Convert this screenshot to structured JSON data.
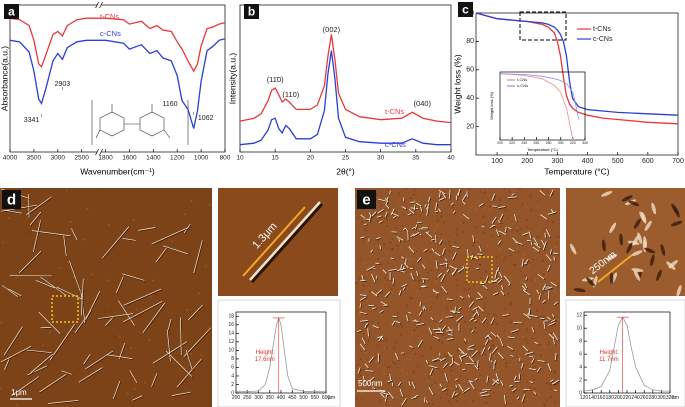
{
  "chart_data": [
    {
      "type": "line",
      "panel": "a",
      "xlabel": "Wavenumber(cm⁻¹)",
      "ylabel": "Absorbance(a.u.)",
      "x": [
        4000,
        3800,
        3600,
        3500,
        3400,
        3341,
        3250,
        3100,
        3000,
        2903,
        2800,
        2600,
        2400,
        2200,
        1800,
        1650,
        1600,
        1500,
        1430,
        1370,
        1320,
        1250,
        1200,
        1160,
        1110,
        1062,
        1030,
        1000,
        950,
        900,
        850,
        800
      ],
      "xlim": [
        4000,
        800
      ],
      "xticks": [
        4000,
        3500,
        3000,
        2500,
        1800,
        1600,
        1400,
        1200,
        1000,
        800
      ],
      "ylim": [
        0,
        10
      ],
      "series": [
        {
          "name": "t-CNs",
          "color": "#e8383d",
          "values": [
            9.1,
            9.0,
            8.6,
            7.6,
            6.0,
            5.8,
            6.6,
            8.0,
            8.2,
            7.9,
            8.6,
            9.0,
            9.1,
            9.1,
            9.1,
            9.0,
            8.7,
            8.9,
            8.4,
            8.6,
            8.3,
            8.2,
            7.5,
            7.0,
            6.2,
            5.5,
            6.0,
            7.2,
            8.4,
            8.5,
            8.7,
            8.8
          ]
        },
        {
          "name": "c-CNs",
          "color": "#2a3fd6",
          "values": [
            7.6,
            7.5,
            6.8,
            5.5,
            3.6,
            3.3,
            4.3,
            6.2,
            6.7,
            6.3,
            7.1,
            7.5,
            7.6,
            7.6,
            7.6,
            7.4,
            7.0,
            7.3,
            6.7,
            6.9,
            6.4,
            6.2,
            5.2,
            3.5,
            2.9,
            1.6,
            2.8,
            4.8,
            6.9,
            7.2,
            7.6,
            7.7
          ]
        }
      ],
      "annotations": [
        3341,
        2903,
        1160,
        1062
      ]
    },
    {
      "type": "line",
      "panel": "b",
      "xlabel": "2θ(°)",
      "ylabel": "Intensity(a.u.)",
      "x": [
        10,
        12,
        13,
        14,
        14.5,
        15,
        15.5,
        16,
        16.5,
        17,
        18,
        20,
        21,
        22,
        22.5,
        23,
        23.5,
        24,
        25,
        27,
        30,
        33,
        34.5,
        36,
        38,
        40
      ],
      "xlim": [
        10,
        40
      ],
      "xticks": [
        10,
        15,
        20,
        25,
        30,
        35,
        40
      ],
      "ylim": [
        0,
        10
      ],
      "series": [
        {
          "name": "t-CNs",
          "color": "#e8383d",
          "values": [
            2.1,
            2.3,
            2.6,
            3.5,
            4.2,
            4.35,
            3.9,
            3.4,
            3.6,
            3.4,
            2.9,
            2.9,
            3.2,
            4.5,
            6.5,
            8.0,
            6.3,
            4.0,
            2.9,
            2.4,
            2.2,
            2.3,
            2.7,
            2.3,
            2.1,
            2.0
          ]
        },
        {
          "name": "c-CNs",
          "color": "#2a3fd6",
          "values": [
            0.5,
            0.6,
            0.8,
            1.5,
            2.2,
            2.3,
            1.6,
            1.3,
            1.8,
            1.6,
            0.9,
            0.9,
            1.2,
            2.8,
            5.3,
            6.9,
            5.0,
            2.3,
            1.0,
            0.7,
            0.6,
            0.6,
            0.9,
            0.6,
            0.5,
            0.5
          ]
        }
      ],
      "annotations": [
        {
          "x": 15,
          "label": "(11̄0)"
        },
        {
          "x": 16.8,
          "label": "(110)"
        },
        {
          "x": 23,
          "label": "(002)"
        },
        {
          "x": 34.5,
          "label": "(040)"
        }
      ]
    },
    {
      "type": "line",
      "panel": "c",
      "xlabel": "Temperature (°C)",
      "ylabel": "Weight loss (%)",
      "x": [
        30,
        100,
        150,
        200,
        250,
        270,
        290,
        300,
        310,
        320,
        330,
        340,
        350,
        370,
        400,
        450,
        500,
        600,
        700
      ],
      "xlim": [
        30,
        700
      ],
      "xticks": [
        100,
        200,
        300,
        400,
        500,
        600,
        700
      ],
      "ylim": [
        0,
        100
      ],
      "yticks": [
        20,
        40,
        60,
        80,
        100
      ],
      "series": [
        {
          "name": "t-CNs",
          "color": "#e8383d",
          "values": [
            100,
            96,
            95,
            94,
            92,
            90,
            86,
            80,
            70,
            55,
            42,
            36,
            33,
            30,
            28,
            26,
            25,
            23,
            22
          ]
        },
        {
          "name": "c-CNs",
          "color": "#2a3fd6",
          "values": [
            100,
            96,
            95,
            94,
            93,
            92,
            90,
            88,
            85,
            80,
            70,
            52,
            40,
            34,
            32,
            31,
            30,
            29,
            28
          ]
        }
      ]
    },
    {
      "type": "line",
      "xlabel": "Temperature (°C)",
      "ylabel": "Weight loss (%)",
      "x": [
        200,
        240,
        270,
        290,
        300,
        310,
        320,
        330
      ],
      "xlim": [
        200,
        340
      ],
      "xticks": [
        200,
        220,
        240,
        260,
        280,
        300,
        320,
        340
      ],
      "ylim": [
        60,
        100
      ],
      "series": [
        {
          "name": "t-CNs",
          "color": "#f08a8c",
          "values": [
            99,
            98,
            96,
            92,
            88,
            78,
            60,
            null
          ]
        },
        {
          "name": "c-CNs",
          "color": "#8f8ff0",
          "values": [
            99,
            98.5,
            97.5,
            96,
            95,
            93,
            88,
            72
          ]
        }
      ]
    },
    {
      "type": "line",
      "x": [
        200,
        250,
        300,
        330,
        350,
        365,
        380,
        390,
        400,
        415,
        430,
        450,
        500,
        550,
        600
      ],
      "values": [
        0.3,
        0.3,
        0.5,
        2,
        6,
        11,
        16,
        17.6,
        16,
        10,
        4,
        1,
        0.4,
        0.3,
        0.3
      ],
      "color": "#999999",
      "xlim": [
        200,
        600
      ],
      "xticks": [
        200,
        250,
        300,
        350,
        400,
        450,
        500,
        550,
        600
      ],
      "xunit": "μm",
      "ylim": [
        0,
        19
      ],
      "yticks": [
        0,
        2,
        4,
        6,
        8,
        10,
        12,
        14,
        16,
        18
      ],
      "annotation": [
        "Height:",
        "17.6nm"
      ]
    },
    {
      "type": "line",
      "x": [
        120,
        140,
        160,
        180,
        190,
        200,
        210,
        220,
        230,
        240,
        260,
        280,
        300,
        320
      ],
      "values": [
        0.3,
        0.5,
        1,
        3.5,
        7,
        10.5,
        11.7,
        10.5,
        7,
        4,
        1.2,
        0.5,
        0.3,
        0.3
      ],
      "color": "#999999",
      "xlim": [
        120,
        320
      ],
      "xticks": [
        120,
        140,
        160,
        180,
        200,
        220,
        240,
        260,
        280,
        300,
        320
      ],
      "xunit": "nm",
      "ylim": [
        0,
        12.5
      ],
      "yticks": [
        0,
        2,
        4,
        6,
        8,
        10,
        12
      ],
      "annotation": [
        "Height:",
        "11.7nm"
      ]
    }
  ],
  "images": {
    "d": {
      "panel": "d",
      "scale_bar": "1μm",
      "zoom_label": "1.3μm"
    },
    "e": {
      "panel": "e",
      "scale_bar": "500nm",
      "zoom_label": "250nm"
    }
  }
}
